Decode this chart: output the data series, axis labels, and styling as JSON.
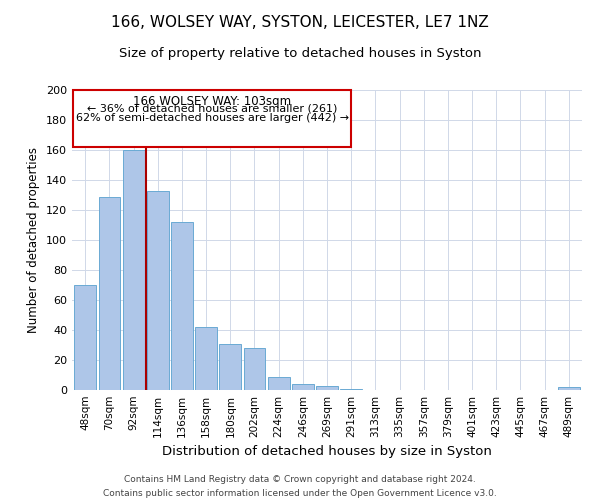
{
  "title": "166, WOLSEY WAY, SYSTON, LEICESTER, LE7 1NZ",
  "subtitle": "Size of property relative to detached houses in Syston",
  "xlabel": "Distribution of detached houses by size in Syston",
  "ylabel": "Number of detached properties",
  "bar_labels": [
    "48sqm",
    "70sqm",
    "92sqm",
    "114sqm",
    "136sqm",
    "158sqm",
    "180sqm",
    "202sqm",
    "224sqm",
    "246sqm",
    "269sqm",
    "291sqm",
    "313sqm",
    "335sqm",
    "357sqm",
    "379sqm",
    "401sqm",
    "423sqm",
    "445sqm",
    "467sqm",
    "489sqm"
  ],
  "bar_values": [
    70,
    129,
    160,
    133,
    112,
    42,
    31,
    28,
    9,
    4,
    3,
    1,
    0,
    0,
    0,
    0,
    0,
    0,
    0,
    0,
    2
  ],
  "bar_color": "#aec6e8",
  "bar_edge_color": "#6aaad4",
  "vline_x_index": 2,
  "vline_color": "#aa0000",
  "annotation_line1": "166 WOLSEY WAY: 103sqm",
  "annotation_line2": "← 36% of detached houses are smaller (261)",
  "annotation_line3": "62% of semi-detached houses are larger (442) →",
  "ylim": [
    0,
    200
  ],
  "yticks": [
    0,
    20,
    40,
    60,
    80,
    100,
    120,
    140,
    160,
    180,
    200
  ],
  "background_color": "#ffffff",
  "grid_color": "#d0d8e8",
  "footer_line1": "Contains HM Land Registry data © Crown copyright and database right 2024.",
  "footer_line2": "Contains public sector information licensed under the Open Government Licence v3.0.",
  "title_fontsize": 11,
  "subtitle_fontsize": 9.5,
  "bar_fontsize": 7.5,
  "ylabel_fontsize": 8.5,
  "xlabel_fontsize": 9.5
}
